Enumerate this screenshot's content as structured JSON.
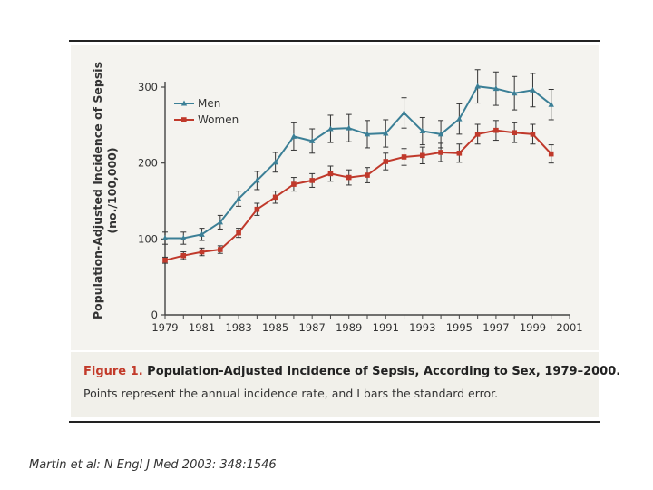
{
  "chart_data": {
    "type": "line",
    "ylabel_line1": "Population-Adjusted Incidence of Sepsis",
    "ylabel_line2": "(no./100,000)",
    "ylim": [
      0,
      300
    ],
    "xlim": [
      1979,
      2001
    ],
    "x_ticks": [
      1979,
      1981,
      1983,
      1985,
      1987,
      1989,
      1991,
      1993,
      1995,
      1997,
      1999,
      2001
    ],
    "y_ticks": [
      0,
      100,
      200,
      300
    ],
    "x": [
      1979,
      1980,
      1981,
      1982,
      1983,
      1984,
      1985,
      1986,
      1987,
      1988,
      1989,
      1990,
      1991,
      1992,
      1993,
      1994,
      1995,
      1996,
      1997,
      1998,
      1999,
      2000
    ],
    "series": [
      {
        "name": "Men",
        "color": "#3b7f96",
        "marker": "triangle",
        "values": [
          101,
          101,
          106,
          122,
          153,
          177,
          201,
          235,
          229,
          245,
          246,
          238,
          239,
          266,
          242,
          238,
          258,
          301,
          298,
          292,
          296,
          277
        ],
        "errors": [
          8,
          8,
          8,
          9,
          10,
          12,
          13,
          18,
          16,
          18,
          18,
          18,
          18,
          20,
          18,
          18,
          20,
          22,
          22,
          22,
          22,
          20
        ]
      },
      {
        "name": "Women",
        "color": "#c0392b",
        "marker": "square",
        "values": [
          72,
          78,
          83,
          86,
          108,
          139,
          155,
          172,
          177,
          186,
          181,
          184,
          202,
          208,
          210,
          214,
          213,
          238,
          243,
          240,
          238,
          212
        ],
        "errors": [
          4,
          5,
          5,
          5,
          6,
          8,
          8,
          9,
          9,
          10,
          10,
          10,
          11,
          11,
          11,
          12,
          12,
          13,
          13,
          13,
          13,
          12
        ]
      }
    ],
    "legend": [
      "Men",
      "Women"
    ],
    "legend_position": "top-left"
  },
  "caption": {
    "label": "Figure 1.",
    "title": "Population-Adjusted Incidence of Sepsis, According to Sex, 1979–2000.",
    "text": "Points represent the annual incidence rate, and I bars the standard error."
  },
  "citation": "Martin et al: N Engl J Med 2003: 348:1546"
}
